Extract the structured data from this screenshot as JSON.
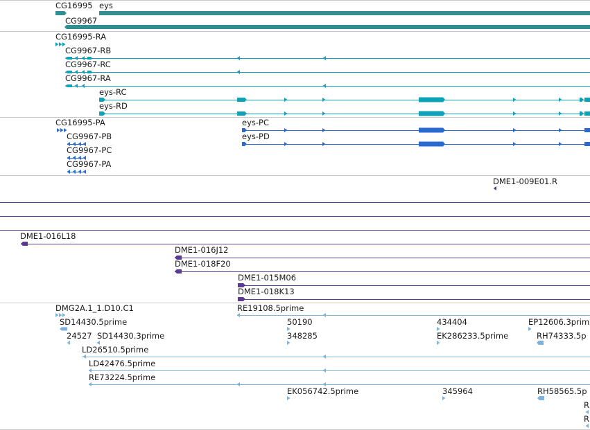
{
  "colors": {
    "gene": "#318f92",
    "mrna": "#0ea2b8",
    "cds": "#2b6ad1",
    "bac": "#5b3a96",
    "est": "#7fb2da",
    "divider": "#c9c9c9",
    "text": "#1a1a1a"
  },
  "tracks": {
    "gene": {
      "features": [
        {
          "id": "g1",
          "label": "CG16995"
        },
        {
          "id": "g2",
          "label": "eys"
        },
        {
          "id": "g3",
          "label": "CG9967"
        }
      ]
    },
    "mrna": {
      "features": [
        {
          "id": "m1",
          "label": "CG16995-RA"
        },
        {
          "id": "m2",
          "label": "CG9967-RB"
        },
        {
          "id": "m3",
          "label": "CG9967-RC"
        },
        {
          "id": "m4",
          "label": "CG9967-RA"
        },
        {
          "id": "m5",
          "label": "eys-RC"
        },
        {
          "id": "m6",
          "label": "eys-RD"
        }
      ]
    },
    "protein": {
      "features": [
        {
          "id": "p1",
          "label": "CG16995-PA"
        },
        {
          "id": "p2",
          "label": "CG9967-PB"
        },
        {
          "id": "p3",
          "label": "CG9967-PC"
        },
        {
          "id": "p4",
          "label": "CG9967-PA"
        },
        {
          "id": "p5",
          "label": "eys-PC"
        },
        {
          "id": "p6",
          "label": "eys-PD"
        }
      ]
    },
    "bac": {
      "features": [
        {
          "id": "b1",
          "label": "DME1-009E01.R"
        },
        {
          "id": "b2",
          "label": "DME1-016L18"
        },
        {
          "id": "b3",
          "label": "DME1-016J12"
        },
        {
          "id": "b4",
          "label": "DME1-018F20"
        },
        {
          "id": "b5",
          "label": "DME1-015M06"
        },
        {
          "id": "b6",
          "label": "DME1-018K13"
        }
      ]
    },
    "est": {
      "features": [
        {
          "id": "e1",
          "label": "DMG2A.1_1.D10.C1"
        },
        {
          "id": "e2",
          "label": "RE19108.5prime"
        },
        {
          "id": "e3",
          "label": "SD14430.5prime"
        },
        {
          "id": "e4",
          "label": "50190"
        },
        {
          "id": "e5",
          "label": "434404"
        },
        {
          "id": "e6",
          "label": "EP12606.3prim"
        },
        {
          "id": "e7",
          "label": "24527"
        },
        {
          "id": "e8",
          "label": "SD14430.3prime"
        },
        {
          "id": "e9",
          "label": "348285"
        },
        {
          "id": "e10",
          "label": "EK286233.5prime"
        },
        {
          "id": "e11",
          "label": "RH74333.5p"
        },
        {
          "id": "e12",
          "label": "LD26510.5prime"
        },
        {
          "id": "e13",
          "label": "LD42476.5prime"
        },
        {
          "id": "e14",
          "label": "RE73224.5prime"
        },
        {
          "id": "e15",
          "label": "EK056742.5prime"
        },
        {
          "id": "e16",
          "label": "345964"
        },
        {
          "id": "e17",
          "label": "RH58565.5p"
        },
        {
          "id": "e18",
          "label": "R"
        },
        {
          "id": "e19",
          "label": "R"
        }
      ]
    }
  }
}
